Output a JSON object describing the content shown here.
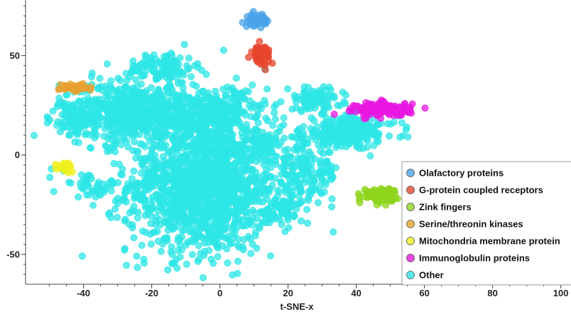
{
  "chart_data": {
    "type": "scatter",
    "title": "",
    "xlabel": "t-SNE-x",
    "ylabel": "",
    "xlim": [
      -57,
      103
    ],
    "ylim": [
      -65,
      78
    ],
    "grid": false,
    "legend_placement": "bottom-right",
    "x_ticks": [
      -40,
      -20,
      0,
      20,
      40,
      60,
      80,
      100
    ],
    "x_tick_labels": [
      "-40",
      "-20",
      "0",
      "20",
      "40",
      "60",
      "80",
      "100"
    ],
    "y_ticks": [
      50,
      0,
      -50
    ],
    "y_tick_labels": [
      "50",
      "0",
      "-50"
    ],
    "series": [
      {
        "name": "Olafactory proteins",
        "color": "#4aa3e8",
        "clusters": [
          {
            "cx": 11,
            "cy": 68,
            "sx": 1.3,
            "sy": 1.4,
            "n": 70
          }
        ]
      },
      {
        "name": "G-protein coupled receptors",
        "color": "#e8452c",
        "clusters": [
          {
            "cx": 12,
            "cy": 51,
            "sx": 1.3,
            "sy": 2.3,
            "n": 70
          }
        ]
      },
      {
        "name": "Zink fingers",
        "color": "#8ed41e",
        "clusters": [
          {
            "cx": 47,
            "cy": -20,
            "sx": 2.5,
            "sy": 1.6,
            "n": 110
          }
        ]
      },
      {
        "name": "Serine/threonin kinases",
        "color": "#e8a030",
        "clusters": [
          {
            "cx": -43,
            "cy": 34,
            "sx": 2.0,
            "sy": 1.1,
            "n": 40
          }
        ]
      },
      {
        "name": "Mitochondria membrane protein",
        "color": "#f0f020",
        "clusters": [
          {
            "cx": -45,
            "cy": -6,
            "sx": 1.5,
            "sy": 1.3,
            "n": 25
          }
        ]
      },
      {
        "name": "Immunoglobulin proteins",
        "color": "#e817e0",
        "clusters": [
          {
            "cx": 48,
            "cy": 23,
            "sx": 4.0,
            "sy": 1.7,
            "n": 160
          }
        ]
      },
      {
        "name": "Other",
        "color": "#2ee6e6",
        "clusters": [
          {
            "cx": -5,
            "cy": -15,
            "sx": 11,
            "sy": 17,
            "n": 1500
          },
          {
            "cx": -25,
            "cy": 22,
            "sx": 11,
            "sy": 7,
            "n": 700
          },
          {
            "cx": -17,
            "cy": 44,
            "sx": 5,
            "sy": 4,
            "n": 120
          },
          {
            "cx": 0,
            "cy": 22,
            "sx": 7,
            "sy": 6,
            "n": 200
          },
          {
            "cx": 28,
            "cy": 28,
            "sx": 4,
            "sy": 3,
            "n": 90
          },
          {
            "cx": 38,
            "cy": 12,
            "sx": 7,
            "sy": 4,
            "n": 240
          },
          {
            "cx": 25,
            "cy": -8,
            "sx": 5,
            "sy": 9,
            "n": 180
          },
          {
            "cx": 18,
            "cy": -28,
            "sx": 3,
            "sy": 4,
            "n": 60
          },
          {
            "cx": -38,
            "cy": -15,
            "sx": 4,
            "sy": 3,
            "n": 40
          },
          {
            "cx": -43,
            "cy": 18,
            "sx": 3,
            "sy": 3,
            "n": 40
          },
          {
            "cx": 12,
            "cy": 5,
            "sx": 3,
            "sy": 4,
            "n": 50
          }
        ]
      }
    ]
  }
}
